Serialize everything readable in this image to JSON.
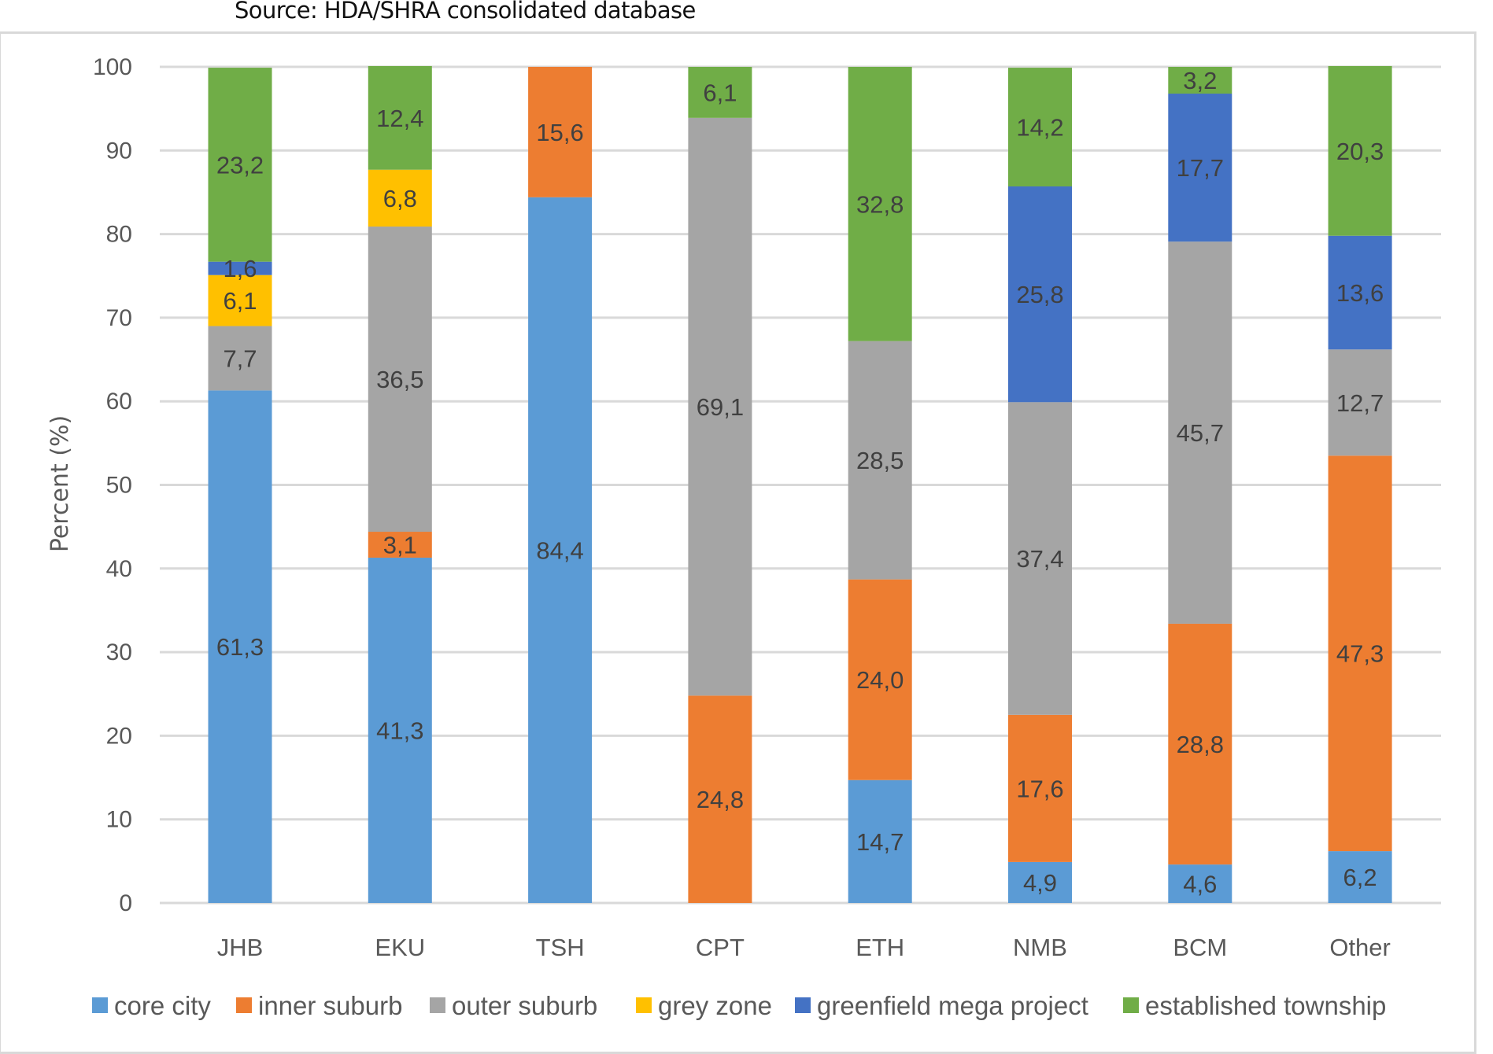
{
  "source_note": "Source: HDA/SHRA consolidated database",
  "chart_data": {
    "type": "bar",
    "stacked": true,
    "percent_stacked": true,
    "title": "",
    "xlabel": "",
    "ylabel": "Percent (%)",
    "ylim": [
      0,
      100
    ],
    "yticks": [
      0,
      10,
      20,
      30,
      40,
      50,
      60,
      70,
      80,
      90,
      100
    ],
    "grid": true,
    "legend_position": "bottom",
    "decimal_separator": ",",
    "categories": [
      "JHB",
      "EKU",
      "TSH",
      "CPT",
      "ETH",
      "NMB",
      "BCM",
      "Other"
    ],
    "series": [
      {
        "name": "core city",
        "color": "#5B9BD5",
        "values": [
          61.3,
          41.3,
          84.4,
          0,
          14.7,
          4.9,
          4.6,
          6.2
        ]
      },
      {
        "name": "inner suburb",
        "color": "#ED7D31",
        "values": [
          0,
          3.1,
          15.6,
          24.8,
          24.0,
          17.6,
          28.8,
          47.3
        ]
      },
      {
        "name": "outer suburb",
        "color": "#A5A5A5",
        "values": [
          7.7,
          36.5,
          0,
          69.1,
          28.5,
          37.4,
          45.7,
          12.7
        ]
      },
      {
        "name": "grey zone",
        "color": "#FFC000",
        "values": [
          6.1,
          6.8,
          0,
          0,
          0,
          0,
          0,
          0
        ]
      },
      {
        "name": "greenfield mega project",
        "color": "#4472C4",
        "values": [
          1.6,
          0,
          0,
          0,
          0,
          25.8,
          17.7,
          13.6
        ]
      },
      {
        "name": "established township",
        "color": "#70AD47",
        "values": [
          23.2,
          12.4,
          0,
          6.1,
          32.8,
          14.2,
          3.2,
          20.3
        ]
      }
    ]
  }
}
